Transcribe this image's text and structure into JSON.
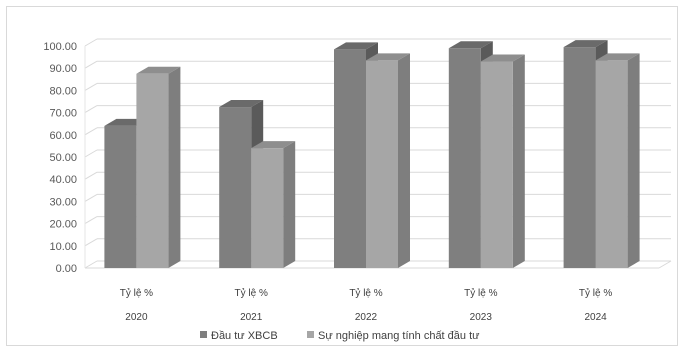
{
  "chart_data": {
    "type": "bar",
    "categories": [
      {
        "label": "Tỷ lệ %",
        "year": "2020"
      },
      {
        "label": "Tỷ lệ %",
        "year": "2021"
      },
      {
        "label": "Tỷ lệ %",
        "year": "2022"
      },
      {
        "label": "Tỷ lệ %",
        "year": "2023"
      },
      {
        "label": "Tỷ lệ %",
        "year": "2024"
      }
    ],
    "series": [
      {
        "name": "Đầu tư XBCB",
        "values": [
          64,
          72.5,
          98.5,
          99,
          99.5
        ],
        "color": "#7f7f7f",
        "side_color": "#5a5a5a",
        "top_color": "#6a6a6a"
      },
      {
        "name": "Sự nghiệp mang tính chất đầu tư",
        "values": [
          87.5,
          54,
          93.5,
          93,
          93.5
        ],
        "color": "#a6a6a6",
        "side_color": "#7e7e7e",
        "top_color": "#8e8e8e"
      }
    ],
    "yticks": [
      "0.00",
      "10.00",
      "20.00",
      "30.00",
      "40.00",
      "50.00",
      "60.00",
      "70.00",
      "80.00",
      "90.00",
      "100.00"
    ],
    "ylim": [
      0,
      100
    ],
    "grid": true,
    "legend_position": "bottom",
    "title": "",
    "xlabel": "",
    "ylabel": ""
  }
}
